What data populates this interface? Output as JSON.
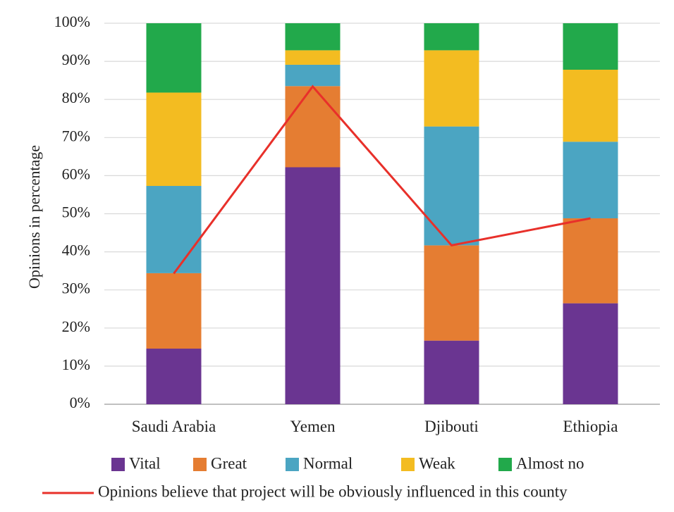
{
  "chart_data": {
    "type": "bar",
    "stacked": true,
    "categories": [
      "Saudi Arabia",
      "Yemen",
      "Djibouti",
      "Ethiopia"
    ],
    "series": [
      {
        "name": "Vital",
        "color": "#6a3591",
        "values": [
          14.6,
          62.2,
          16.7,
          26.5
        ]
      },
      {
        "name": "Great",
        "color": "#e57d32",
        "values": [
          19.8,
          21.3,
          25.0,
          22.3
        ]
      },
      {
        "name": "Normal",
        "color": "#4ba5c2",
        "values": [
          22.9,
          5.6,
          31.2,
          20.1
        ]
      },
      {
        "name": "Weak",
        "color": "#f3bc21",
        "values": [
          24.5,
          3.8,
          20.0,
          18.9
        ]
      },
      {
        "name": "Almost no",
        "color": "#22a94b",
        "values": [
          18.2,
          7.1,
          7.1,
          12.2
        ]
      }
    ],
    "line_series": {
      "name": "Opinions believe that project will be obviously influenced in this county",
      "color": "#e8302a",
      "values": [
        34.3,
        83.4,
        41.7,
        48.8
      ]
    },
    "ylabel": "Opinions in percentage",
    "xlabel": "",
    "ylim": [
      0,
      100
    ],
    "yticks": [
      "0%",
      "10%",
      "20%",
      "30%",
      "40%",
      "50%",
      "60%",
      "70%",
      "80%",
      "90%",
      "100%"
    ],
    "grid": true,
    "legend_position": "bottom"
  }
}
